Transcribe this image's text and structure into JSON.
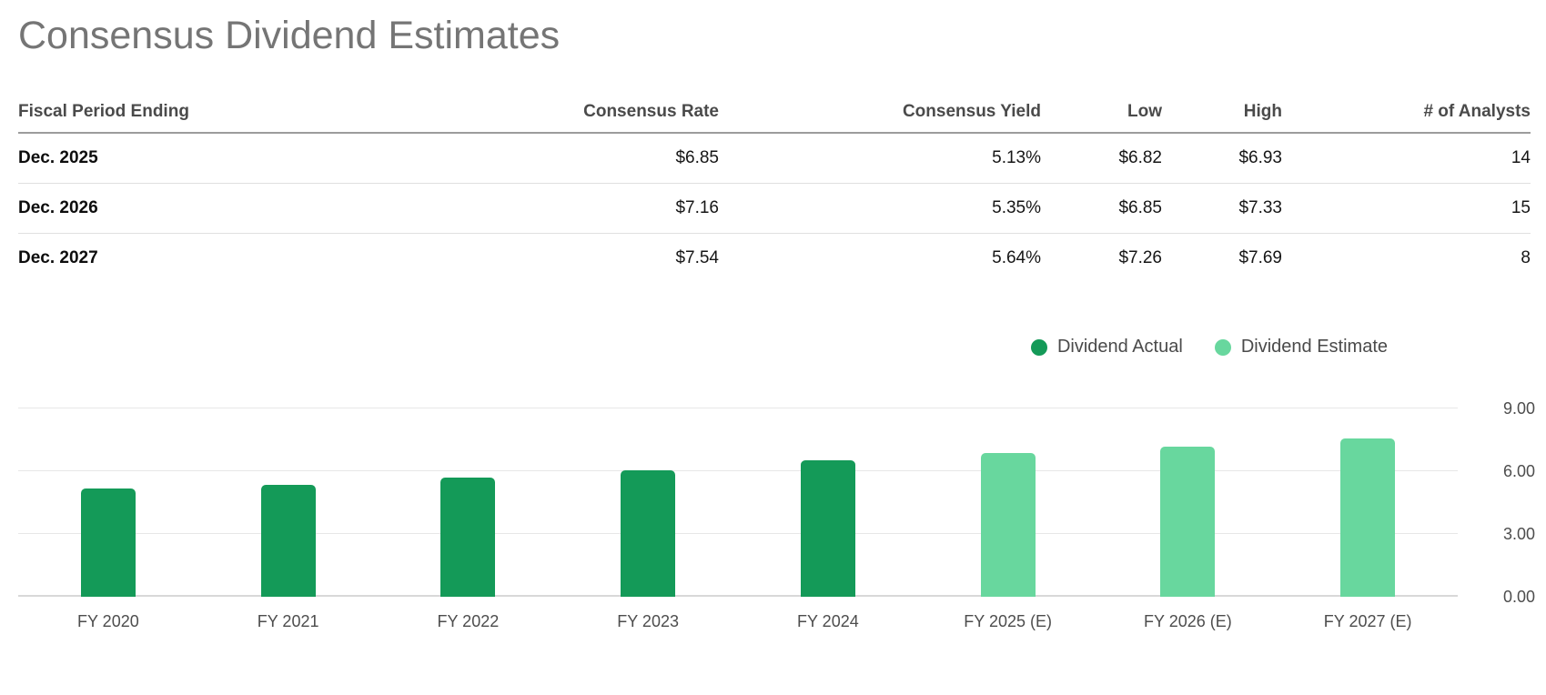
{
  "page": {
    "title": "Consensus Dividend Estimates"
  },
  "table": {
    "columns": [
      {
        "key": "period",
        "label": "Fiscal Period Ending"
      },
      {
        "key": "consensus_rate",
        "label": "Consensus Rate"
      },
      {
        "key": "consensus_yield",
        "label": "Consensus Yield"
      },
      {
        "key": "low",
        "label": "Low"
      },
      {
        "key": "high",
        "label": "High"
      },
      {
        "key": "analysts",
        "label": "# of Analysts"
      }
    ],
    "rows": [
      {
        "period": "Dec. 2025",
        "consensus_rate": "$6.85",
        "consensus_yield": "5.13%",
        "low": "$6.82",
        "high": "$6.93",
        "analysts": "14"
      },
      {
        "period": "Dec. 2026",
        "consensus_rate": "$7.16",
        "consensus_yield": "5.35%",
        "low": "$6.85",
        "high": "$7.33",
        "analysts": "15"
      },
      {
        "period": "Dec. 2027",
        "consensus_rate": "$7.54",
        "consensus_yield": "5.64%",
        "low": "$7.26",
        "high": "$7.69",
        "analysts": "8"
      }
    ]
  },
  "chart_data": {
    "type": "bar",
    "title": "",
    "xlabel": "",
    "ylabel": "",
    "categories": [
      "FY 2020",
      "FY 2021",
      "FY 2022",
      "FY 2023",
      "FY 2024",
      "FY 2025 (E)",
      "FY 2026 (E)",
      "FY 2027 (E)"
    ],
    "series": [
      {
        "name": "Dividend Actual",
        "color": "#149a58",
        "values": [
          5.16,
          5.31,
          5.68,
          6.04,
          6.52,
          null,
          null,
          null
        ]
      },
      {
        "name": "Dividend Estimate",
        "color": "#68d79e",
        "values": [
          null,
          null,
          null,
          null,
          null,
          6.85,
          7.16,
          7.54
        ]
      }
    ],
    "yticks": [
      "0.00",
      "3.00",
      "6.00",
      "9.00"
    ],
    "ylim": [
      0,
      11
    ],
    "grid": true,
    "legend_position": "top-right",
    "colors": {
      "actual": "#149a58",
      "estimate": "#68d79e",
      "gridline": "#e7e7e7",
      "axis_text": "#4d4d4d"
    }
  }
}
